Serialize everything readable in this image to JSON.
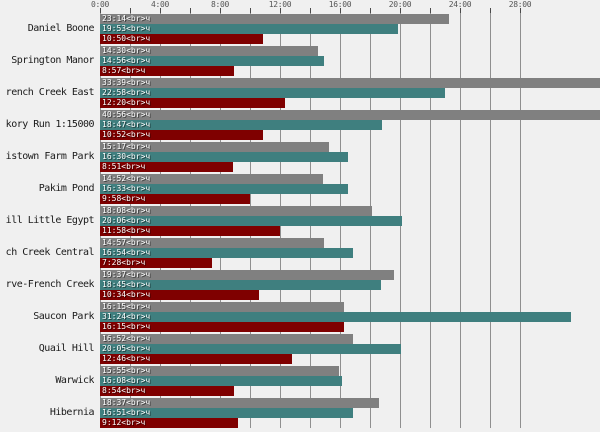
{
  "chart_data": {
    "type": "bar",
    "orientation": "horizontal",
    "title": "",
    "xlabel": "",
    "ylabel": "",
    "x_axis": {
      "unit": "time (h:mm)",
      "tick_labels": [
        "0:00",
        "4:00",
        "8:00",
        "12:00",
        "16:00",
        "20:00",
        "24:00",
        "28:00"
      ],
      "tick_hours": [
        0,
        4,
        8,
        12,
        16,
        20,
        24,
        28
      ],
      "minor_tick_every_hours": 2,
      "gridline_hours": [
        0,
        2,
        4,
        6,
        8,
        10,
        12,
        14,
        16,
        18,
        20,
        22,
        24,
        26,
        28
      ],
      "visible_range_hours": [
        0,
        33.3
      ],
      "grid": "on",
      "legend": "none"
    },
    "series": [
      {
        "name": "series-1-gray",
        "color": "#808080"
      },
      {
        "name": "series-2-teal",
        "color": "#3f7f7f"
      },
      {
        "name": "series-3-darkred",
        "color": "#7f0000"
      }
    ],
    "bar_label_suffix": "<br>ч",
    "rows": [
      {
        "label": "Daniel Boone",
        "values": [
          "23:14",
          "19:53",
          "10:50"
        ]
      },
      {
        "label": "Springton Manor",
        "values": [
          "14:30",
          "14:56",
          "8:57"
        ]
      },
      {
        "label": "rench Creek East",
        "values": [
          "33:39",
          "22:58",
          "12:20"
        ]
      },
      {
        "label": "kory Run 1:15000",
        "values": [
          "40:56",
          "18:47",
          "10:52"
        ]
      },
      {
        "label": "istown Farm Park",
        "values": [
          "15:17",
          "16:30",
          "8:51"
        ]
      },
      {
        "label": "Pakim Pond",
        "values": [
          "14:52",
          "16:33",
          "9:58"
        ]
      },
      {
        "label": "ill Little Egypt",
        "values": [
          "18:08",
          "20:06",
          "11:58"
        ]
      },
      {
        "label": "ch Creek Central",
        "values": [
          "14:57",
          "16:54",
          "7:28"
        ]
      },
      {
        "label": "rve-French Creek",
        "values": [
          "19:37",
          "18:45",
          "10:34"
        ]
      },
      {
        "label": "Saucon Park",
        "values": [
          "16:15",
          "31:24",
          "16:15"
        ]
      },
      {
        "label": "Quail Hill",
        "values": [
          "16:52",
          "20:05",
          "12:46"
        ]
      },
      {
        "label": "Warwick",
        "values": [
          "15:55",
          "16:08",
          "8:54"
        ]
      },
      {
        "label": "Hibernia",
        "values": [
          "18:37",
          "16:51",
          "9:12"
        ]
      }
    ]
  },
  "colors": {
    "background": "#f0f0f0",
    "gridline": "#8f8f8f",
    "tick": "#4a4a4a",
    "axis_text": "#555555",
    "row_label_text": "#1a1a1a",
    "bar_text": "#ffffff",
    "bar_gray": "#808080",
    "bar_teal": "#3f7f7f",
    "bar_darkred": "#7f0000"
  }
}
